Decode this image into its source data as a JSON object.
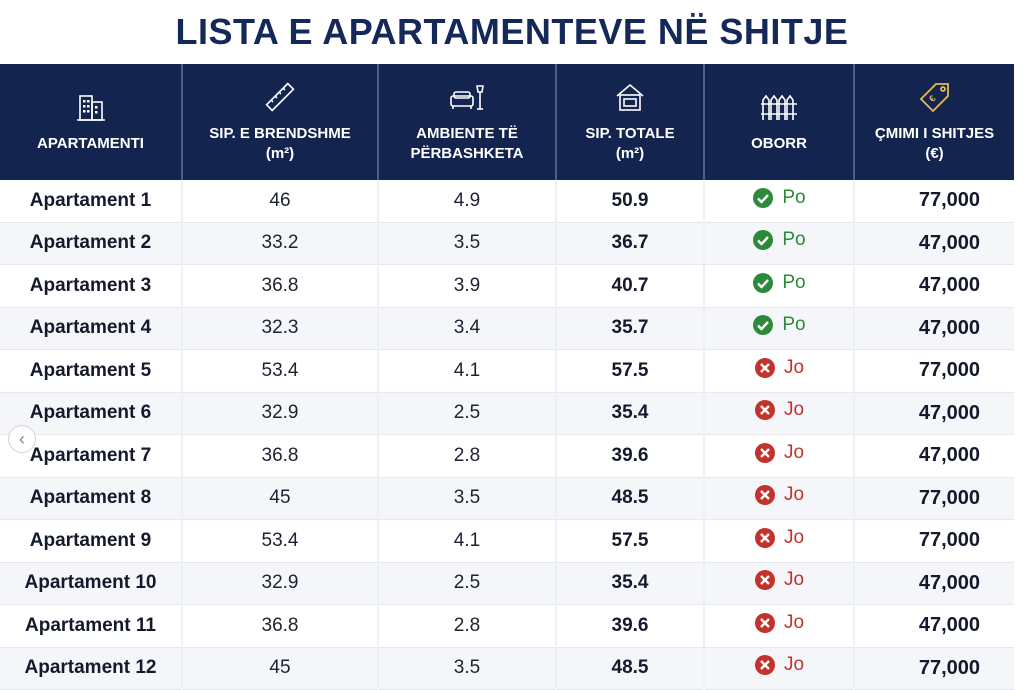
{
  "title": "LISTA E APARTAMENTEVE NË SHITJE",
  "headers": [
    {
      "label": "APARTAMENTI",
      "sub": "",
      "icon": "building-icon"
    },
    {
      "label": "SIP. E BRENDSHME",
      "sub": "(m²)",
      "icon": "ruler-icon"
    },
    {
      "label": "AMBIENTE TË",
      "sub": "PËRBASHKETA",
      "icon": "sofa-lamp-icon"
    },
    {
      "label": "SIP. TOTALE",
      "sub": "(m²)",
      "icon": "house-icon"
    },
    {
      "label": "OBORR",
      "sub": "",
      "icon": "fence-icon"
    },
    {
      "label": "ÇMIMI I SHITJES",
      "sub": "(€)",
      "icon": "price-tag-icon"
    }
  ],
  "rows": [
    {
      "name": "Apartament 1",
      "inner": "46",
      "common": "4.9",
      "total": "50.9",
      "yard": "Po",
      "price": "77,000"
    },
    {
      "name": "Apartament 2",
      "inner": "33.2",
      "common": "3.5",
      "total": "36.7",
      "yard": "Po",
      "price": "47,000"
    },
    {
      "name": "Apartament 3",
      "inner": "36.8",
      "common": "3.9",
      "total": "40.7",
      "yard": "Po",
      "price": "47,000"
    },
    {
      "name": "Apartament 4",
      "inner": "32.3",
      "common": "3.4",
      "total": "35.7",
      "yard": "Po",
      "price": "47,000"
    },
    {
      "name": "Apartament 5",
      "inner": "53.4",
      "common": "4.1",
      "total": "57.5",
      "yard": "Jo",
      "price": "77,000"
    },
    {
      "name": "Apartament 6",
      "inner": "32.9",
      "common": "2.5",
      "total": "35.4",
      "yard": "Jo",
      "price": "47,000"
    },
    {
      "name": "Apartament 7",
      "inner": "36.8",
      "common": "2.8",
      "total": "39.6",
      "yard": "Jo",
      "price": "47,000"
    },
    {
      "name": "Apartament 8",
      "inner": "45",
      "common": "3.5",
      "total": "48.5",
      "yard": "Jo",
      "price": "77,000"
    },
    {
      "name": "Apartament 9",
      "inner": "53.4",
      "common": "4.1",
      "total": "57.5",
      "yard": "Jo",
      "price": "77,000"
    },
    {
      "name": "Apartament 10",
      "inner": "32.9",
      "common": "2.5",
      "total": "35.4",
      "yard": "Jo",
      "price": "47,000"
    },
    {
      "name": "Apartament 11",
      "inner": "36.8",
      "common": "2.8",
      "total": "39.6",
      "yard": "Jo",
      "price": "47,000"
    },
    {
      "name": "Apartament 12",
      "inner": "45",
      "common": "3.5",
      "total": "48.5",
      "yard": "Jo",
      "price": "77,000"
    }
  ],
  "colors": {
    "header_bg": "#13254f",
    "title": "#14285a",
    "yes": "#2c8a3a",
    "no": "#c4322c"
  }
}
